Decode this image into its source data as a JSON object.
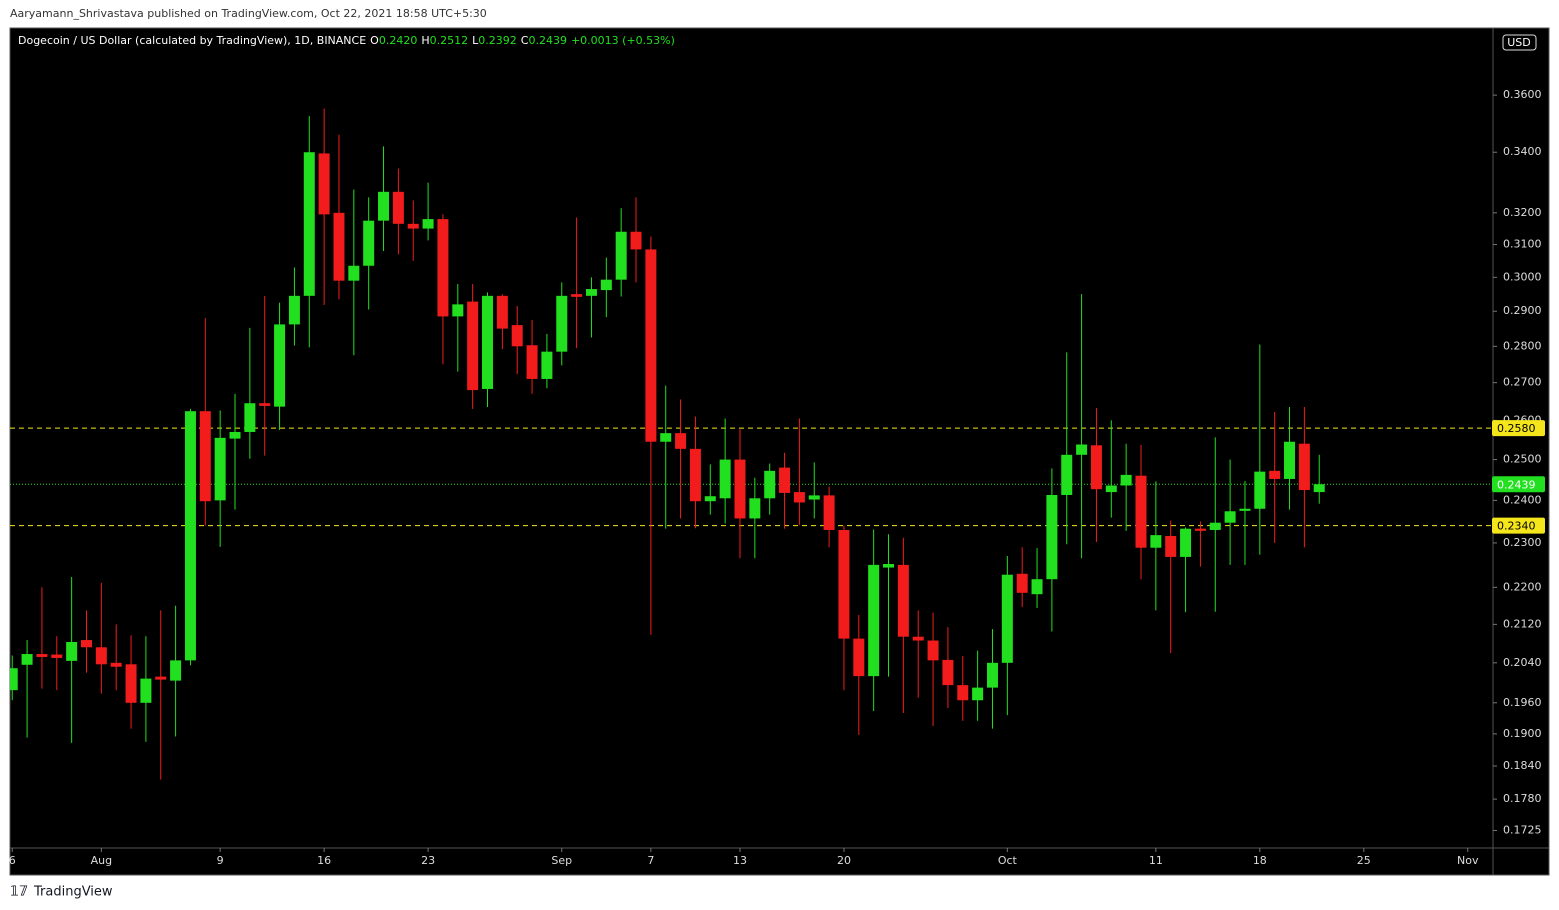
{
  "byline": "Aaryamann_Shrivastava published on TradingView.com, Oct 22, 2021 18:58 UTC+5:30",
  "footer": "TradingView",
  "currency": "USD",
  "chart_data": {
    "type": "candlestick",
    "title": "Dogecoin / US Dollar (calculated by TradingView), 1D, BINANCE",
    "ohlc_legend": [
      {
        "label": "O",
        "value": "0.2420"
      },
      {
        "label": "H",
        "value": "0.2512"
      },
      {
        "label": "L",
        "value": "0.2392"
      },
      {
        "label": "C",
        "value": "0.2439"
      }
    ],
    "change": "+0.0013 (+0.53%)",
    "up_color": "#22e01f",
    "down_color": "#f21c1c",
    "log_scale": true,
    "ylim": [
      0.1695,
      0.385
    ],
    "xlim": [
      -0.15,
      99.7
    ],
    "yticks": [
      {
        "value": 0.36,
        "label": "0.3600"
      },
      {
        "value": 0.34,
        "label": "0.3400"
      },
      {
        "value": 0.32,
        "label": "0.3200"
      },
      {
        "value": 0.31,
        "label": "0.3100"
      },
      {
        "value": 0.3,
        "label": "0.3000"
      },
      {
        "value": 0.29,
        "label": "0.2900"
      },
      {
        "value": 0.28,
        "label": "0.2800"
      },
      {
        "value": 0.27,
        "label": "0.2700"
      },
      {
        "value": 0.26,
        "label": "0.2600"
      },
      {
        "value": 0.25,
        "label": "0.2500"
      },
      {
        "value": 0.24,
        "label": "0.2400"
      },
      {
        "value": 0.23,
        "label": "0.2300"
      },
      {
        "value": 0.22,
        "label": "0.2200"
      },
      {
        "value": 0.212,
        "label": "0.2120"
      },
      {
        "value": 0.204,
        "label": "0.2040"
      },
      {
        "value": 0.196,
        "label": "0.1960"
      },
      {
        "value": 0.19,
        "label": "0.1900"
      },
      {
        "value": 0.184,
        "label": "0.1840"
      },
      {
        "value": 0.178,
        "label": "0.1780"
      },
      0.1725
    ],
    "xticks": [
      {
        "value": 0,
        "label": "6"
      },
      {
        "value": 6,
        "label": "Aug"
      },
      {
        "value": 14,
        "label": "9"
      },
      {
        "value": 21,
        "label": "16"
      },
      {
        "value": 28,
        "label": "23"
      },
      {
        "value": 37,
        "label": "Sep"
      },
      {
        "value": 43,
        "label": "7"
      },
      {
        "value": 49,
        "label": "13"
      },
      {
        "value": 56,
        "label": "20"
      },
      {
        "value": 67,
        "label": "Oct"
      },
      {
        "value": 77,
        "label": "11"
      },
      {
        "value": 84,
        "label": "18"
      },
      {
        "value": 91,
        "label": "25"
      },
      {
        "value": 98,
        "label": "Nov"
      }
    ],
    "levels": [
      {
        "value": 0.258,
        "label": "0.2580",
        "color": "#f5e61b"
      },
      {
        "value": 0.234,
        "label": "0.2340",
        "color": "#f5e61b"
      }
    ],
    "last_price": {
      "value": 0.2439,
      "label": "0.2439",
      "color": "#22e01f"
    },
    "open": [
      0.1985,
      0.2036,
      0.2058,
      0.2057,
      0.2044,
      0.2087,
      0.2072,
      0.204,
      0.2037,
      0.196,
      0.2012,
      0.2004,
      0.2045,
      0.2624,
      0.24,
      0.2553,
      0.257,
      0.2645,
      0.2636,
      0.2862,
      0.2945,
      0.3396,
      0.32,
      0.299,
      0.3035,
      0.3175,
      0.3268,
      0.3165,
      0.315,
      0.318,
      0.2885,
      0.2928,
      0.2683,
      0.2945,
      0.286,
      0.2803,
      0.271,
      0.2785,
      0.295,
      0.2945,
      0.2962,
      0.2993,
      0.314,
      0.3085,
      0.2545,
      0.2567,
      0.2527,
      0.2398,
      0.2405,
      0.25,
      0.2357,
      0.2405,
      0.248,
      0.242,
      0.2402,
      0.2412,
      0.233,
      0.209,
      0.2013,
      0.2244,
      0.225,
      0.2094,
      0.2086,
      0.2046,
      0.1995,
      0.1965,
      0.199,
      0.204,
      0.223,
      0.2185,
      0.2218,
      0.2413,
      0.2512,
      0.2536,
      0.242,
      0.2436,
      0.246,
      0.2289,
      0.2316,
      0.2268,
      0.2333,
      0.233,
      0.2347,
      0.2375,
      0.238,
      0.2472,
      0.2452,
      0.254,
      0.242
    ],
    "high": [
      0.2055,
      0.2087,
      0.22,
      0.2095,
      0.2223,
      0.215,
      0.221,
      0.212,
      0.2097,
      0.2095,
      0.215,
      0.216,
      0.263,
      0.288,
      0.2626,
      0.267,
      0.2852,
      0.2945,
      0.2925,
      0.303,
      0.3525,
      0.3552,
      0.346,
      0.3275,
      0.325,
      0.342,
      0.3345,
      0.324,
      0.3298,
      0.3195,
      0.298,
      0.298,
      0.2955,
      0.295,
      0.2915,
      0.2875,
      0.2835,
      0.2985,
      0.3185,
      0.3,
      0.306,
      0.3215,
      0.325,
      0.3125,
      0.2692,
      0.2655,
      0.261,
      0.2488,
      0.2605,
      0.2577,
      0.2455,
      0.249,
      0.2517,
      0.2605,
      0.2493,
      0.2433,
      0.234,
      0.214,
      0.2331,
      0.232,
      0.2312,
      0.215,
      0.2145,
      0.2114,
      0.2054,
      0.2065,
      0.211,
      0.227,
      0.229,
      0.2288,
      0.2478,
      0.2783,
      0.295,
      0.2632,
      0.26,
      0.254,
      0.2537,
      0.2446,
      0.2352,
      0.2336,
      0.235,
      0.2556,
      0.25,
      0.2447,
      0.2805,
      0.2622,
      0.2635,
      0.2635,
      0.2512
    ],
    "low": [
      0.1965,
      0.1893,
      0.1988,
      0.1985,
      0.1883,
      0.202,
      0.1978,
      0.1985,
      0.191,
      0.1885,
      0.1815,
      0.1895,
      0.2035,
      0.234,
      0.2291,
      0.2378,
      0.2502,
      0.251,
      0.2575,
      0.2802,
      0.2797,
      0.2918,
      0.2935,
      0.2775,
      0.2905,
      0.308,
      0.307,
      0.305,
      0.3113,
      0.275,
      0.273,
      0.263,
      0.2635,
      0.2792,
      0.2723,
      0.267,
      0.2685,
      0.2747,
      0.2795,
      0.2825,
      0.2883,
      0.2943,
      0.2985,
      0.2098,
      0.2333,
      0.2357,
      0.2334,
      0.2366,
      0.2345,
      0.2265,
      0.2265,
      0.2366,
      0.2333,
      0.2341,
      0.2357,
      0.229,
      0.1985,
      0.1898,
      0.1944,
      0.2012,
      0.194,
      0.197,
      0.1915,
      0.195,
      0.1925,
      0.1925,
      0.191,
      0.1936,
      0.2157,
      0.2155,
      0.2105,
      0.2297,
      0.2265,
      0.2302,
      0.2359,
      0.2328,
      0.2218,
      0.215,
      0.206,
      0.2146,
      0.2246,
      0.2147,
      0.225,
      0.225,
      0.2273,
      0.23,
      0.2378,
      0.229,
      0.2392
    ],
    "close": [
      0.2029,
      0.2058,
      0.2052,
      0.205,
      0.2083,
      0.2072,
      0.2037,
      0.2032,
      0.196,
      0.2008,
      0.2006,
      0.2045,
      0.2624,
      0.2398,
      0.2555,
      0.257,
      0.2645,
      0.2638,
      0.2862,
      0.2945,
      0.34,
      0.3195,
      0.299,
      0.3035,
      0.3175,
      0.3268,
      0.3165,
      0.315,
      0.318,
      0.2885,
      0.292,
      0.268,
      0.2945,
      0.285,
      0.28,
      0.271,
      0.2785,
      0.2945,
      0.2942,
      0.2965,
      0.2993,
      0.314,
      0.3085,
      0.2545,
      0.2567,
      0.2527,
      0.2398,
      0.241,
      0.25,
      0.2357,
      0.2405,
      0.2472,
      0.2418,
      0.2395,
      0.2412,
      0.233,
      0.209,
      0.2013,
      0.225,
      0.2252,
      0.2094,
      0.2086,
      0.2045,
      0.1995,
      0.1965,
      0.199,
      0.204,
      0.2228,
      0.2188,
      0.2218,
      0.2413,
      0.2512,
      0.2538,
      0.2427,
      0.2436,
      0.2462,
      0.2289,
      0.2318,
      0.2268,
      0.2333,
      0.2328,
      0.2347,
      0.2374,
      0.238,
      0.247,
      0.2452,
      0.2545,
      0.2425,
      0.2439
    ]
  }
}
